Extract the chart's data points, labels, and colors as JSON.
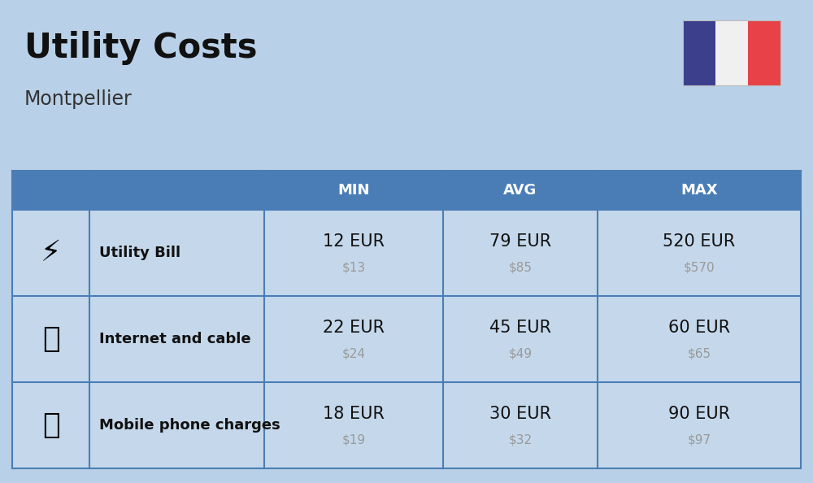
{
  "title": "Utility Costs",
  "subtitle": "Montpellier",
  "background_color": "#b8d0e8",
  "table_header_color": "#4a7db5",
  "table_header_text_color": "#ffffff",
  "table_row_color": "#c5d8eb",
  "table_border_color": "#4a7db5",
  "col_headers": [
    "MIN",
    "AVG",
    "MAX"
  ],
  "rows": [
    {
      "label": "Utility Bill",
      "min_eur": "12 EUR",
      "min_usd": "$13",
      "avg_eur": "79 EUR",
      "avg_usd": "$85",
      "max_eur": "520 EUR",
      "max_usd": "$570"
    },
    {
      "label": "Internet and cable",
      "min_eur": "22 EUR",
      "min_usd": "$24",
      "avg_eur": "45 EUR",
      "avg_usd": "$49",
      "max_eur": "60 EUR",
      "max_usd": "$65"
    },
    {
      "label": "Mobile phone charges",
      "min_eur": "18 EUR",
      "min_usd": "$19",
      "avg_eur": "30 EUR",
      "avg_usd": "$32",
      "max_eur": "90 EUR",
      "max_usd": "$97"
    }
  ],
  "flag_blue": "#3b3f8c",
  "flag_white": "#f0f0f0",
  "flag_red": "#e84249",
  "title_fontsize": 30,
  "subtitle_fontsize": 17,
  "header_fontsize": 13,
  "label_fontsize": 13,
  "value_fontsize": 15,
  "usd_fontsize": 11,
  "eur_color": "#111111",
  "usd_color": "#999999"
}
